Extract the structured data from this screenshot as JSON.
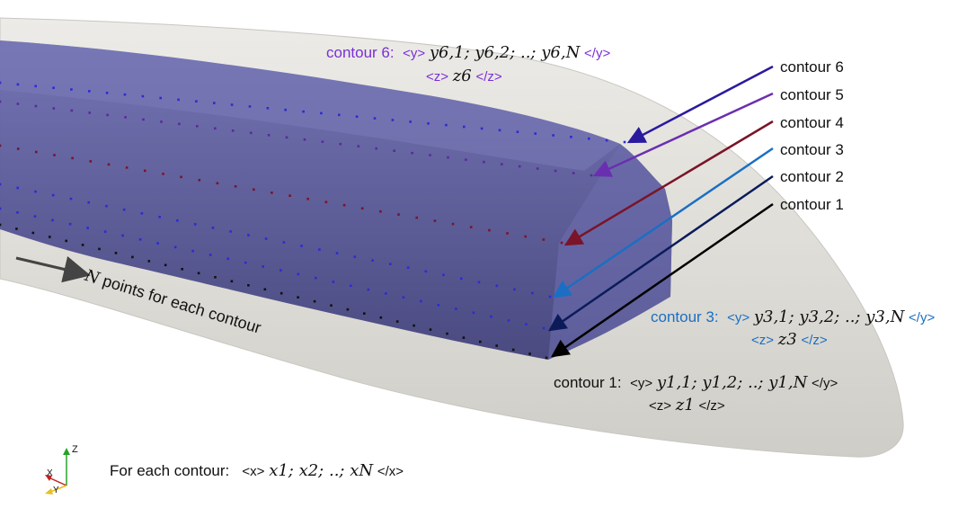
{
  "legend": {
    "items": [
      {
        "label": "contour 6",
        "color": "#2a1a9e"
      },
      {
        "label": "contour 5",
        "color": "#6a2fb0"
      },
      {
        "label": "contour 4",
        "color": "#7a1428"
      },
      {
        "label": "contour 3",
        "color": "#1a6fc4"
      },
      {
        "label": "contour 2",
        "color": "#0b1b5a"
      },
      {
        "label": "contour 1",
        "color": "#000000"
      }
    ]
  },
  "annotations": {
    "contour6": {
      "name": "contour 6:",
      "y_open": "<y>",
      "y_text": "y6,1; y6,2; ..; y6,N",
      "y_close": "</y>",
      "z_open": "<z>",
      "z_text": "z6",
      "z_close": "</z>"
    },
    "contour3": {
      "name": "contour 3:",
      "y_open": "<y>",
      "y_text": "y3,1; y3,2; ..; y3,N",
      "y_close": "</y>",
      "z_open": "<z>",
      "z_text": "z3",
      "z_close": "</z>"
    },
    "contour1": {
      "name": "contour 1:",
      "y_open": "<y>",
      "y_text": "y1,1; y1,2; ..; y1,N",
      "y_close": "</y>",
      "z_open": "<z>",
      "z_text": "z1",
      "z_close": "</z>"
    }
  },
  "npoints_label": {
    "var": "N",
    "text": " points for each contour"
  },
  "footer": {
    "prefix": "For each contour:",
    "x_open": "<x>",
    "x_text": "x1; x2; ..; xN",
    "x_close": "</x>"
  },
  "axes": {
    "z": "Z",
    "x": "X",
    "y": "Y"
  },
  "colors": {
    "body": "#e6e4df",
    "volume": "#5a5a9e",
    "dots_blue": "#2b2bd6",
    "dots_red": "#7a1428"
  }
}
